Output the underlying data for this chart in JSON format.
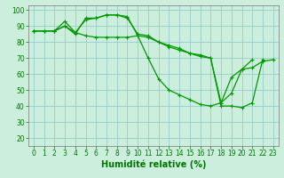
{
  "title": "",
  "xlabel": "Humidité relative (%)",
  "ylabel": "",
  "background_color": "#cceedd",
  "grid_color": "#99cccc",
  "line_color": "#009900",
  "xlim": [
    -0.5,
    23.5
  ],
  "ylim": [
    15,
    103
  ],
  "yticks": [
    20,
    30,
    40,
    50,
    60,
    70,
    80,
    90,
    100
  ],
  "xticks": [
    0,
    1,
    2,
    3,
    4,
    5,
    6,
    7,
    8,
    9,
    10,
    11,
    12,
    13,
    14,
    15,
    16,
    17,
    18,
    19,
    20,
    21,
    22,
    23
  ],
  "series": [
    [
      87,
      87,
      87,
      90,
      85,
      95,
      95,
      97,
      97,
      96,
      84,
      70,
      57,
      50,
      47,
      44,
      41,
      40,
      42,
      48,
      63,
      69,
      null,
      null
    ],
    [
      87,
      87,
      87,
      93,
      86,
      94,
      95,
      97,
      97,
      95,
      85,
      84,
      80,
      78,
      76,
      73,
      72,
      70,
      42,
      58,
      63,
      64,
      68,
      69
    ],
    [
      87,
      87,
      87,
      90,
      86,
      84,
      83,
      83,
      83,
      83,
      84,
      83,
      80,
      77,
      75,
      73,
      71,
      70,
      40,
      40,
      39,
      42,
      69,
      null
    ]
  ],
  "marker": "+",
  "markersize": 3,
  "linewidth": 0.9,
  "xlabel_fontsize": 7,
  "tick_fontsize": 5.5,
  "tick_color": "#007700",
  "xlabel_color": "#007700"
}
